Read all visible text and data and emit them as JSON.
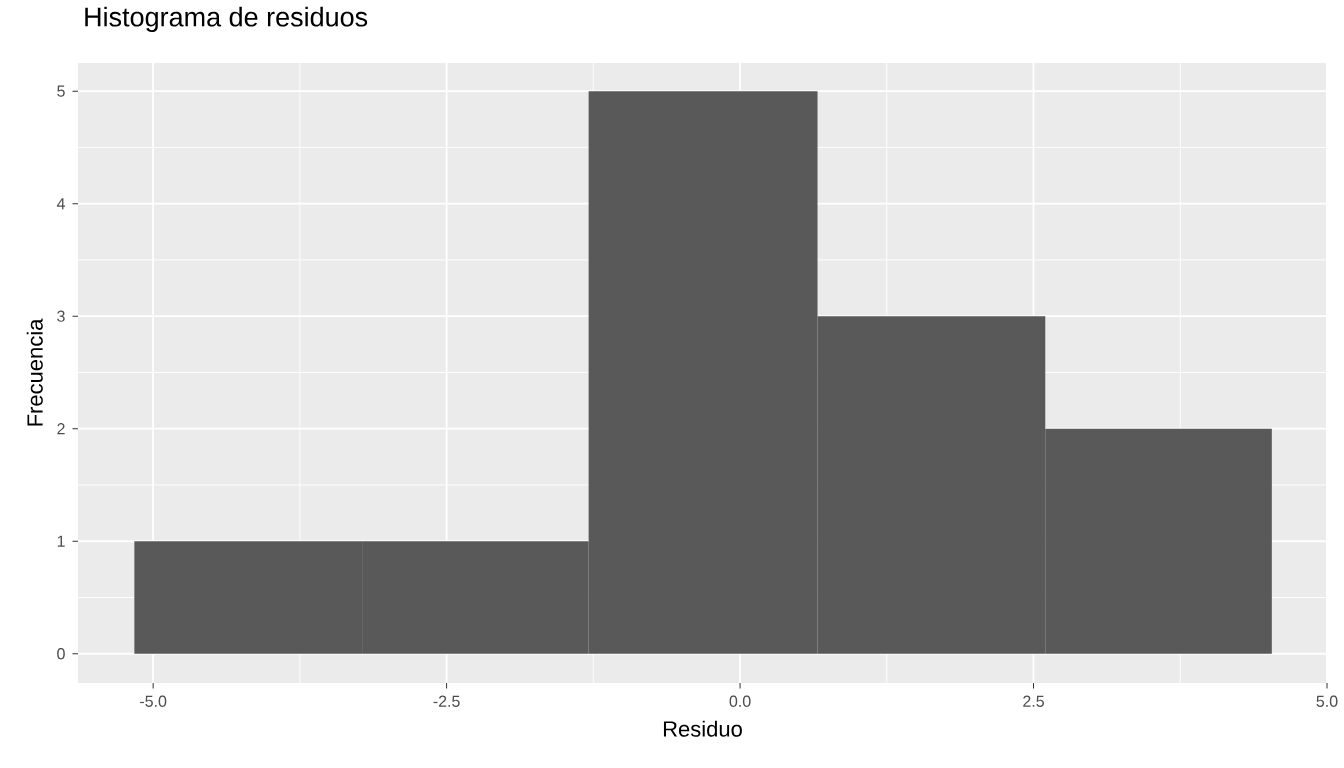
{
  "chart_data": {
    "type": "histogram",
    "title": "Histograma de residuos",
    "xlabel": "Residuo",
    "ylabel": "Frecuencia",
    "bins": [
      -5.16,
      -3.22,
      -1.29,
      0.66,
      2.6,
      4.53
    ],
    "values": [
      1,
      1,
      5,
      3,
      2
    ],
    "color": "#595959",
    "xlim": [
      -5.64,
      5.0
    ],
    "ylim": [
      -0.26,
      5.25
    ],
    "xticks": [
      {
        "value": -5,
        "label": "-5.0"
      },
      {
        "value": -2.5,
        "label": "-2.5"
      },
      {
        "value": 0,
        "label": "0.0"
      },
      {
        "value": 2.5,
        "label": "2.5"
      },
      {
        "value": 5,
        "label": "5.0"
      }
    ],
    "yticks": [
      0,
      1,
      2,
      3,
      4,
      5
    ],
    "grid": true
  }
}
